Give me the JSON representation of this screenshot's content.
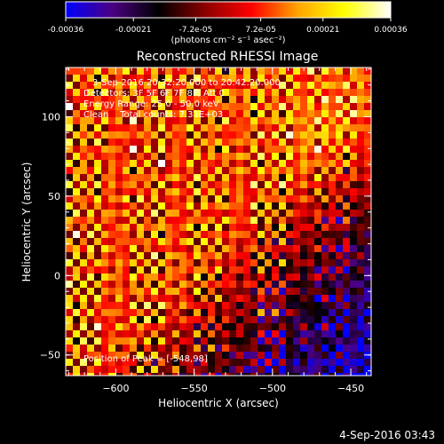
{
  "colorbar": {
    "tick_labels": [
      "-0.00036",
      "-0.00021",
      "-7.2e-05",
      "7.2e-05",
      "0.00021",
      "0.00036"
    ],
    "ticks": [
      -0.00036,
      -0.00021,
      -7.2e-05,
      7.2e-05,
      0.00021,
      0.00036
    ],
    "range": [
      -0.00036,
      0.00036
    ],
    "units": "(photons cm⁻² s⁻¹ asec⁻²)"
  },
  "footer": {
    "timestamp": "4-Sep-2016 03:43"
  },
  "chart_data": {
    "type": "heatmap",
    "title": "Reconstructed RHESSI Image",
    "xlabel": "Heliocentric X (arcsec)",
    "ylabel": "Heliocentric Y (arcsec)",
    "xlim": [
      -632,
      -437
    ],
    "ylim": [
      -63,
      131
    ],
    "xticks": [
      -600,
      -550,
      -500,
      -450
    ],
    "xtick_labels": [
      "−600",
      "−550",
      "−500",
      "−450"
    ],
    "yticks": [
      -50,
      0,
      50,
      100
    ],
    "ytick_labels": [
      "−50",
      "0",
      "50",
      "100"
    ],
    "annotations": {
      "time_range": "3-Sep-2016 20:32:20.000 to 20:42:20.000",
      "detectors": "Detectors: 3F 5F 6F 7F 8F, Att 0",
      "energy": "Energy Range: 25.0 - 50.0 keV",
      "method": "Clean    Total counts: 7.31E+03",
      "peak": "Position of Peak = [-548,98]"
    },
    "peak_position": [
      -548,
      98
    ],
    "colormap": [
      "#0000ff",
      "#4b0082",
      "#000000",
      "#8b0000",
      "#ff0000",
      "#ffa500",
      "#ffff00",
      "#ffffff"
    ]
  }
}
